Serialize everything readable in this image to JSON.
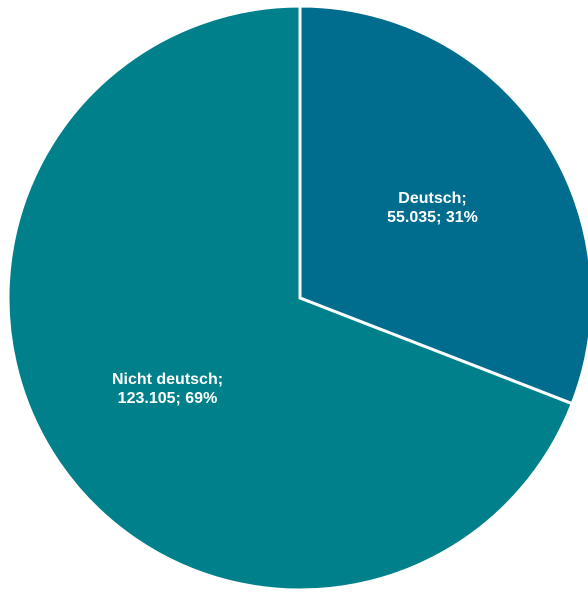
{
  "chart_data": {
    "type": "pie",
    "title": "",
    "start_angle_deg": 0,
    "direction": "clockwise",
    "slices": [
      {
        "category": "Deutsch",
        "value": 55035,
        "value_label": "55.035",
        "percent": 31,
        "percent_label": "31%",
        "label_line1": "Deutsch;",
        "label_line2": "55.035; 31%",
        "color": "#006d8f"
      },
      {
        "category": "Nicht deutsch",
        "value": 123105,
        "value_label": "123.105",
        "percent": 69,
        "percent_label": "69%",
        "label_line1": "Nicht deutsch;",
        "label_line2": "123.105; 69%",
        "color": "#00808a"
      }
    ],
    "legend": "none"
  }
}
